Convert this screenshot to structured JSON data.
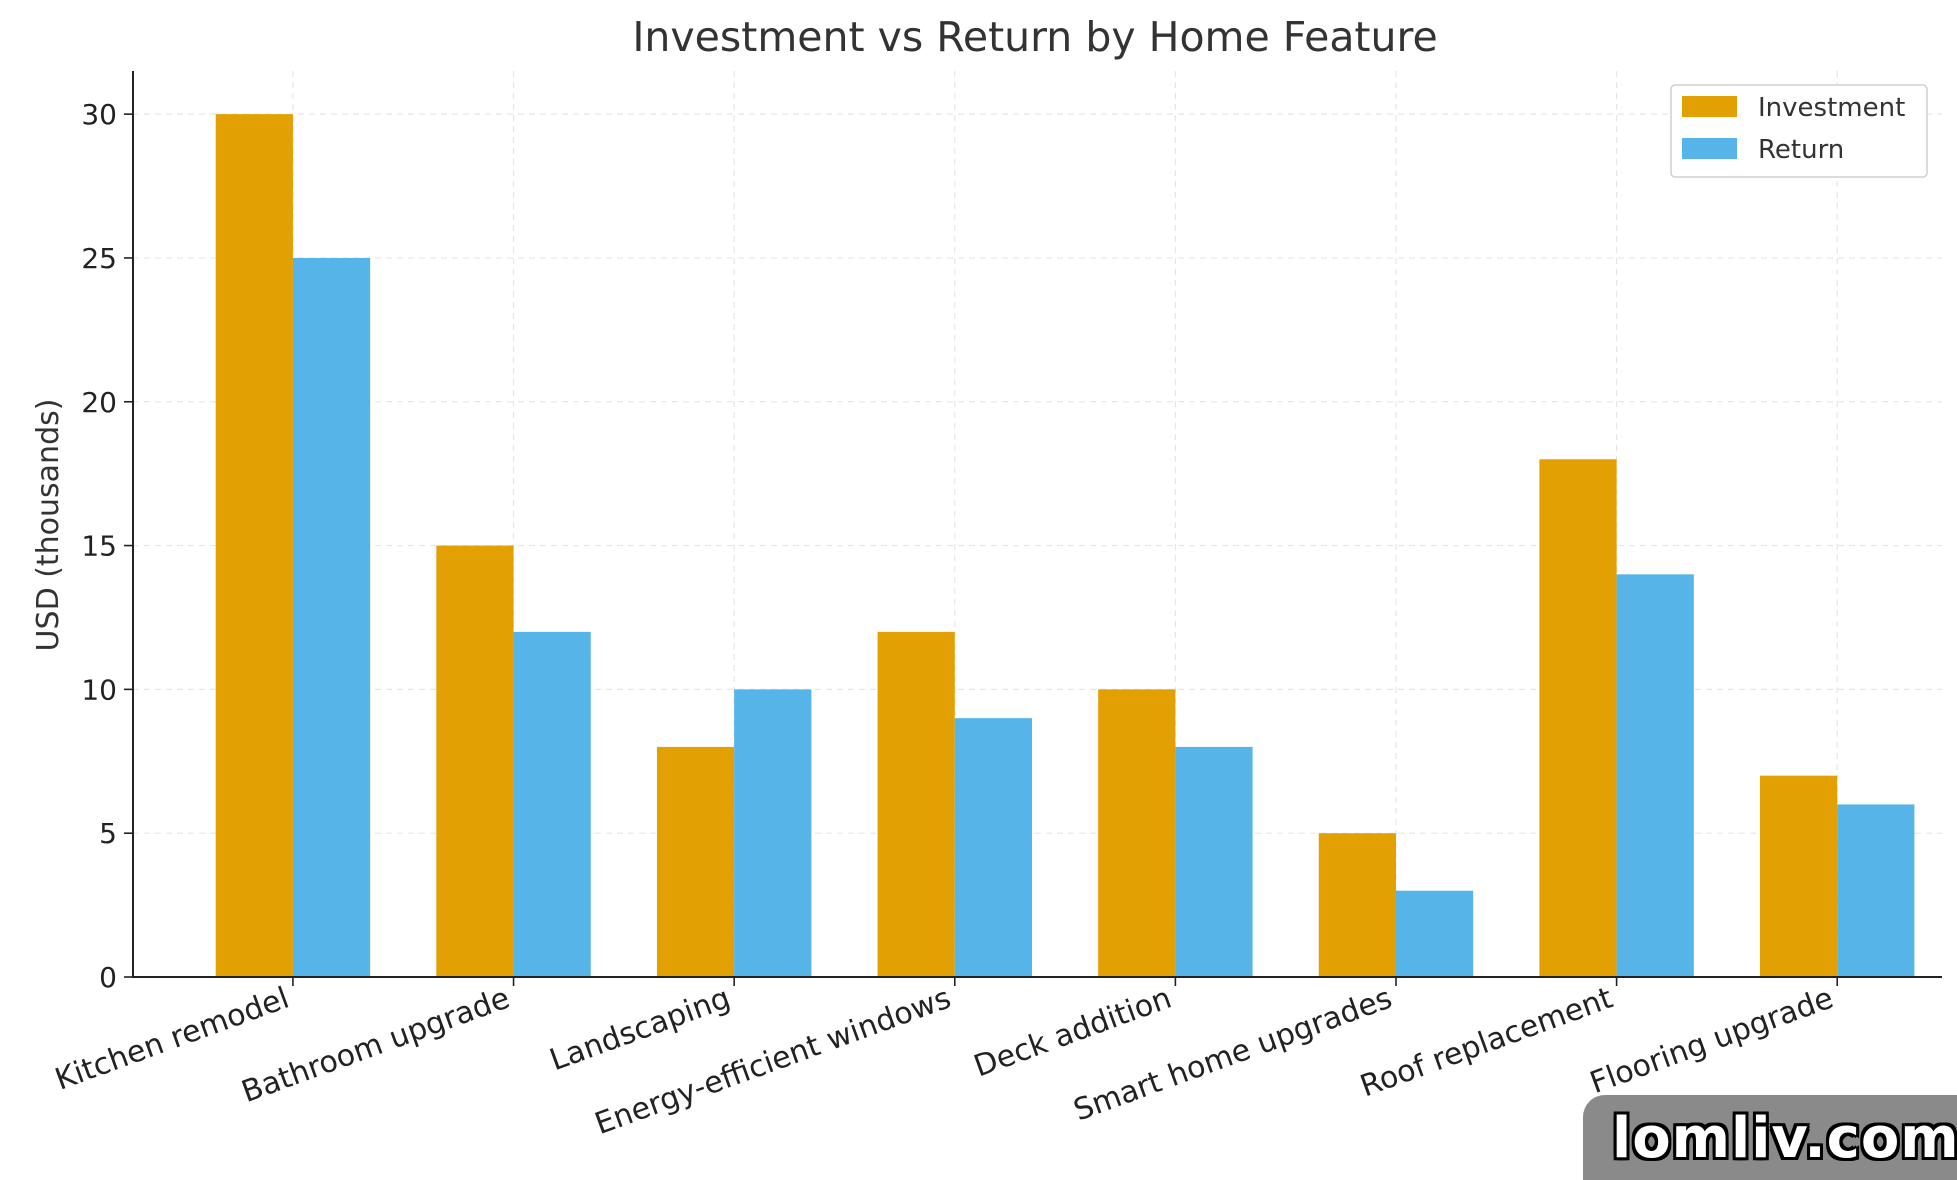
{
  "chart_data": {
    "type": "bar",
    "title": "Investment vs Return by Home Feature",
    "xlabel": "",
    "ylabel": "USD (thousands)",
    "ylim": [
      0,
      31.5
    ],
    "yticks": [
      0,
      5,
      10,
      15,
      20,
      25,
      30
    ],
    "grid": true,
    "legend_position": "top-right",
    "categories": [
      "Kitchen remodel",
      "Bathroom upgrade",
      "Landscaping",
      "Energy-efficient windows",
      "Deck addition",
      "Smart home upgrades",
      "Roof replacement",
      "Flooring upgrade"
    ],
    "series": [
      {
        "name": "Investment",
        "color": "#E3A003",
        "values": [
          30,
          15,
          8,
          12,
          10,
          5,
          18,
          7
        ]
      },
      {
        "name": "Return",
        "color": "#56B4E9",
        "values": [
          25,
          12,
          10,
          9,
          8,
          3,
          14,
          6
        ]
      }
    ]
  },
  "watermark": {
    "text": "lomliv.com"
  }
}
